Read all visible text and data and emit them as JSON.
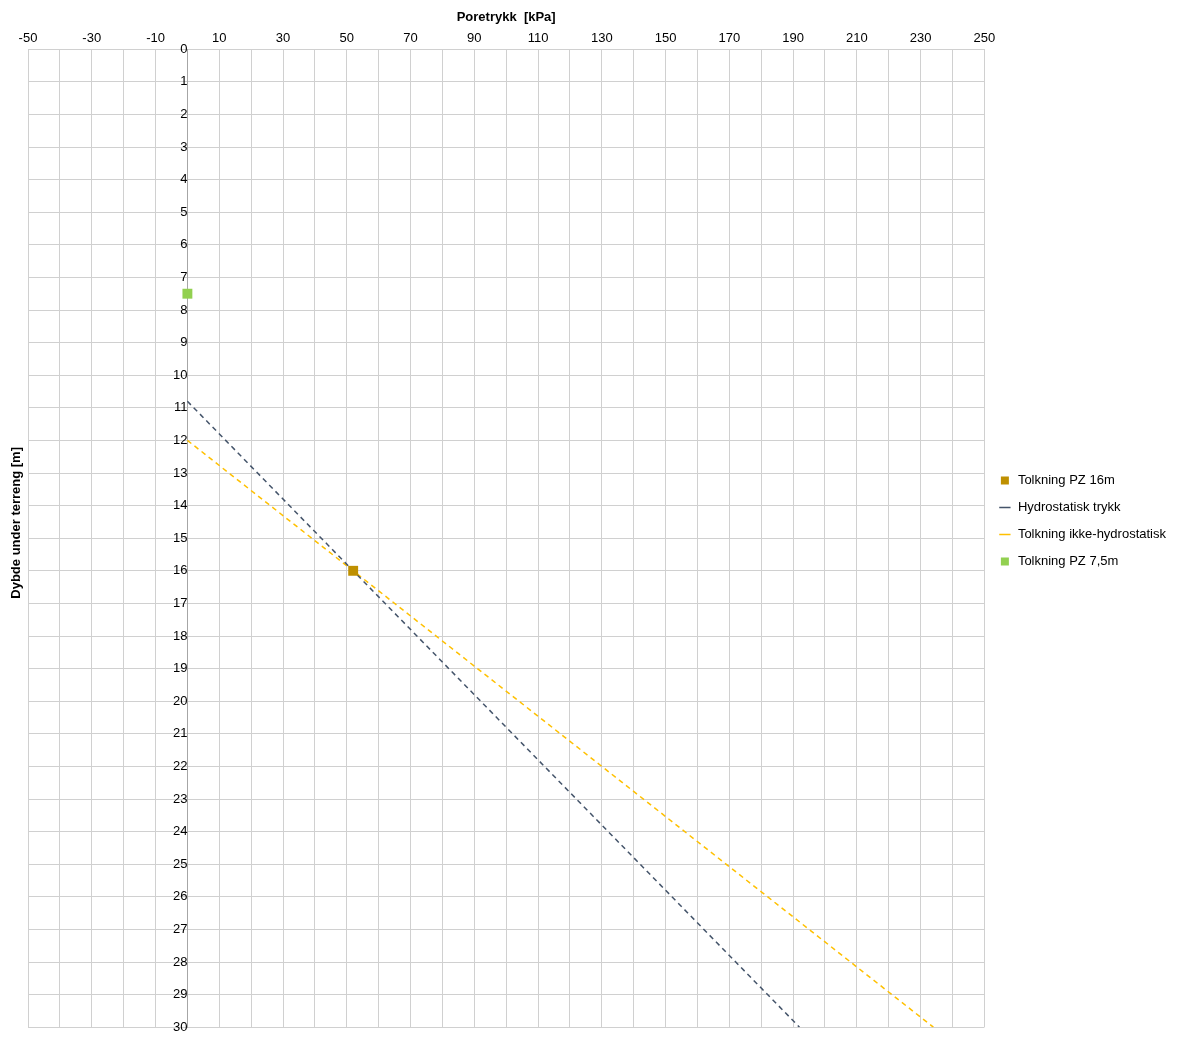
{
  "chart_data": {
    "type": "scatter",
    "xlabel": "Poretrykk  [kPa]",
    "ylabel": "Dybde under terreng [m]",
    "xlim": [
      -50,
      250
    ],
    "xticks": [
      -50,
      {
        "value": -40,
        "label": null
      },
      -30,
      {
        "value": -20,
        "label": null
      },
      -10,
      {
        "value": 0,
        "label": null
      },
      10,
      {
        "value": 20,
        "label": null
      },
      30,
      {
        "value": 40,
        "label": null
      },
      50,
      {
        "value": 60,
        "label": null
      },
      70,
      {
        "value": 80,
        "label": null
      },
      90,
      {
        "value": 100,
        "label": null
      },
      110,
      {
        "value": 120,
        "label": null
      },
      130,
      {
        "value": 140,
        "label": null
      },
      150,
      {
        "value": 160,
        "label": null
      },
      170,
      {
        "value": 180,
        "label": null
      },
      190,
      {
        "value": 200,
        "label": null
      },
      210,
      {
        "value": 220,
        "label": null
      },
      230,
      {
        "value": 240,
        "label": null
      },
      250
    ],
    "ylim": [
      30,
      0
    ],
    "yticks": [
      0,
      1,
      2,
      3,
      4,
      5,
      6,
      7,
      8,
      9,
      10,
      11,
      12,
      13,
      14,
      15,
      16,
      17,
      18,
      19,
      20,
      21,
      22,
      23,
      24,
      25,
      26,
      27,
      28,
      29,
      30
    ],
    "grid": true,
    "legend": "right",
    "marker": "square",
    "series": [
      {
        "name": "Tolkning PZ 16m",
        "color": "#bf9000",
        "x": [
          52
        ],
        "values": [
          16
        ]
      },
      {
        "name": "Hydrostatisk trykk",
        "type": "line",
        "color": "#44546a",
        "line_style": "dashed",
        "marker": "none",
        "x": [
          0,
          192
        ],
        "values": [
          10.8,
          30
        ]
      },
      {
        "name": "Tolkning ikke-hydrostatisk",
        "type": "line",
        "color": "#ffc000",
        "line_style": "dashed",
        "marker": "none",
        "x": [
          0,
          234
        ],
        "values": [
          12,
          30
        ]
      },
      {
        "name": "Tolkning PZ 7,5m",
        "color": "#92d050",
        "x": [
          0
        ],
        "values": [
          7.5
        ]
      }
    ]
  }
}
